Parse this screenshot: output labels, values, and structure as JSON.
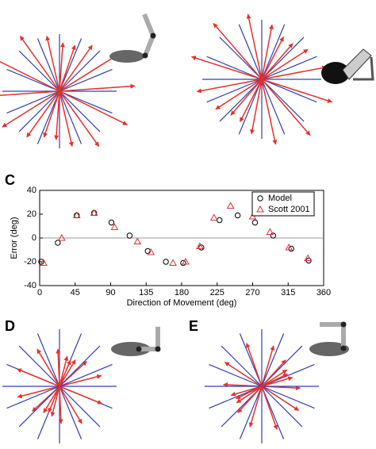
{
  "panel_labels": [
    "C",
    "D",
    "E"
  ],
  "chart_data": {
    "type": "scatter",
    "xlabel": "Direction of Movement (deg)",
    "ylabel": "Error (deg)",
    "xlim": [
      0,
      360
    ],
    "xticks": [
      0,
      45,
      90,
      135,
      180,
      225,
      270,
      315,
      360
    ],
    "ylim": [
      -40,
      40
    ],
    "yticks": [
      -40,
      -20,
      0,
      20,
      40
    ],
    "hline": 0,
    "legend": "upper right",
    "series": [
      {
        "name": "Model",
        "color": "#000000",
        "marker": "circle",
        "x": [
          2,
          23,
          47,
          69,
          91,
          114,
          137,
          160,
          182,
          205,
          228,
          251,
          273,
          296,
          319,
          341
        ],
        "values": [
          -20,
          -4,
          19,
          21,
          13,
          2,
          -11,
          -20,
          -21,
          -8,
          15,
          19,
          13,
          2,
          -9,
          -19
        ]
      },
      {
        "name": "Scott 2001",
        "color": "#e03030",
        "marker": "triangle",
        "x": [
          5,
          28,
          47,
          69,
          95,
          124,
          141,
          169,
          185,
          203,
          221,
          242,
          270,
          292,
          316,
          340
        ],
        "values": [
          -21,
          0,
          19,
          21,
          9,
          -3,
          -12,
          -21,
          -20,
          -7,
          17,
          27,
          18,
          5,
          -8,
          -17
        ]
      }
    ]
  }
}
